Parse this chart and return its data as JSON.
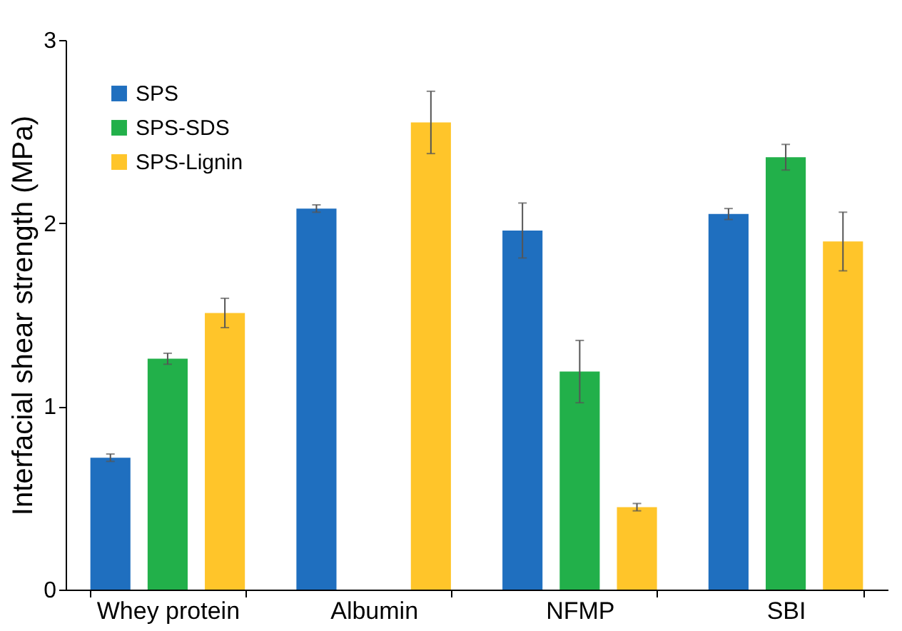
{
  "chart_data": {
    "type": "bar",
    "ylabel": "Interfacial shear strength (MPa)",
    "categories": [
      "Whey protein",
      "Albumin",
      "NFMP",
      "SBI"
    ],
    "series": [
      {
        "name": "SPS",
        "color": "#1f6fbf",
        "values": [
          0.72,
          2.08,
          1.96,
          2.05
        ],
        "errors": [
          0.02,
          0.02,
          0.15,
          0.03
        ]
      },
      {
        "name": "SPS-SDS",
        "color": "#22b04a",
        "values": [
          1.26,
          null,
          1.19,
          2.36
        ],
        "errors": [
          0.03,
          null,
          0.17,
          0.07
        ]
      },
      {
        "name": "SPS-Lignin",
        "color": "#ffc52a",
        "values": [
          1.51,
          2.55,
          0.45,
          1.9
        ],
        "errors": [
          0.08,
          0.17,
          0.02,
          0.16
        ]
      }
    ],
    "ylim": [
      0,
      3
    ],
    "yticks": [
      0,
      1,
      2,
      3
    ],
    "grid": false,
    "legend": "top left"
  }
}
